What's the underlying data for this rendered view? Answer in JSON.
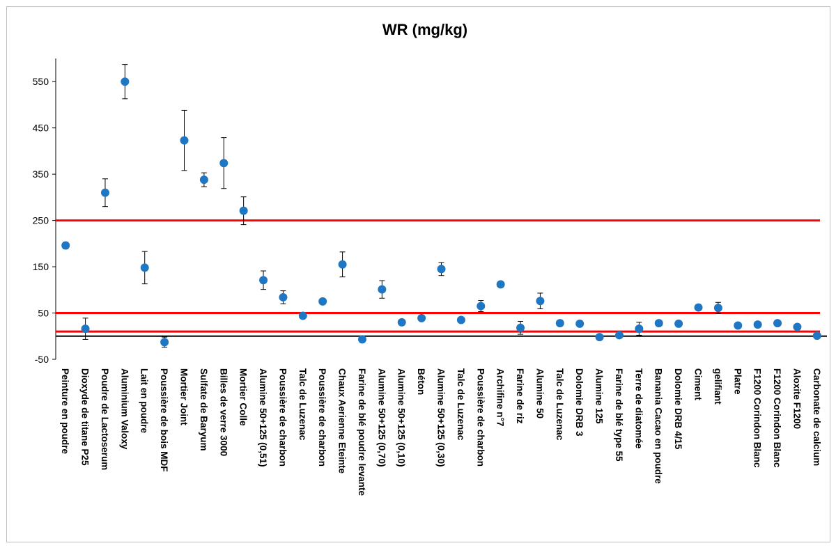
{
  "chart_data": {
    "type": "scatter",
    "title": "WR (mg/kg)",
    "xlabel": "",
    "ylabel": "",
    "ylim": [
      -50,
      600
    ],
    "yticks": [
      "-50",
      "50",
      "150",
      "250",
      "350",
      "450",
      "550"
    ],
    "grid": false,
    "legend": "none",
    "colors": {
      "marker": "#1f77c4",
      "threshold": "#ff0000",
      "baseline": "#000000",
      "errorbar": "#000000"
    },
    "thresholds": [
      250,
      50,
      10
    ],
    "baseline": 0,
    "categories": [
      "Peinture en poudre",
      "Dioxyde de titane P25",
      "Poudre de Lactoserum",
      "Aluminium Valoxy",
      "Lait en poudre",
      "Poussière de bois MDF",
      "Mortier Joint",
      "Sulfate de Baryum",
      "Billes de verre 3000",
      "Mortier Colle",
      "Alumine 50+125 (0,51)",
      "Poussière de charbon",
      "Talc de Luzenac",
      "Poussière de charbon",
      "Chaux Aerienne Eteinte",
      "Farine de blé poudre levante",
      "Alumine 50+125 (0,70)",
      "Alumine 50+125 (0,10)",
      "Béton",
      "Alumine 50+125 (0,30)",
      "Talc de Luzenac",
      "Poussière de charbon",
      "Archifine n°7",
      "Farine de riz",
      "Alumine 50",
      "Talc de Luzenac",
      "Dolomie DRB 3",
      "Alumine 125",
      "Farine de blé type 55",
      "Terre de diatomée",
      "Banania Cacao en poudre",
      "Dolomie DRB 4/15",
      "Ciment",
      "gelifiant",
      "Platre",
      "F1200 Corindon Blanc",
      "F1200 Corindon Blanc",
      "Aloxite F1200",
      "Carbonate de calcium"
    ],
    "values": [
      196,
      16,
      310,
      550,
      148,
      -13,
      423,
      338,
      374,
      271,
      121,
      84,
      44,
      75,
      155,
      -7,
      101,
      30,
      39,
      145,
      35,
      65,
      112,
      18,
      76,
      28,
      27,
      -2,
      2,
      16,
      28,
      27,
      62,
      61,
      23,
      25,
      28,
      20,
      1
    ],
    "errors": [
      7,
      23,
      30,
      37,
      35,
      11,
      65,
      15,
      55,
      30,
      20,
      14,
      6,
      4,
      27,
      4,
      19,
      4,
      4,
      14,
      4,
      12,
      4,
      14,
      17,
      4,
      4,
      4,
      4,
      14,
      4,
      4,
      4,
      12,
      4,
      4,
      4,
      4,
      4
    ]
  }
}
